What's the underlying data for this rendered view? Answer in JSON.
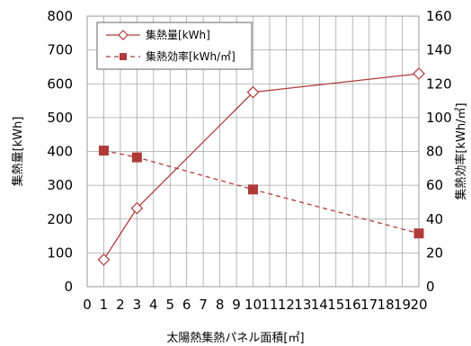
{
  "chart_data": {
    "type": "line",
    "xlabel": "太陽熱集熱パネル面積[㎡]",
    "ylabel_left": "集熱量[kWh]",
    "ylabel_right": "集熱効率[kWh/㎡]",
    "x_ticks": [
      0,
      1,
      2,
      3,
      4,
      5,
      6,
      7,
      8,
      9,
      10,
      11,
      12,
      13,
      14,
      15,
      16,
      17,
      18,
      19,
      20
    ],
    "xlim": [
      0,
      20
    ],
    "ylim_left": [
      0,
      800
    ],
    "ylim_right": [
      0,
      160
    ],
    "yticks_left": [
      0,
      100,
      200,
      300,
      400,
      500,
      600,
      700,
      800
    ],
    "yticks_right": [
      0,
      20,
      40,
      60,
      80,
      100,
      120,
      140,
      160
    ],
    "grid": "vertical and horizontal",
    "legend_position": "top-left",
    "series": [
      {
        "name": "集熱量[kWh]",
        "axis": "left",
        "style": "solid",
        "marker": "diamond-open",
        "color": "#b03a3a",
        "x": [
          1,
          3,
          10,
          20
        ],
        "values": [
          80,
          232,
          575,
          630
        ]
      },
      {
        "name": "集熱効率[kWh/㎡]",
        "axis": "right",
        "style": "dashed",
        "marker": "square-filled",
        "color": "#b03a3a",
        "x": [
          1,
          3,
          10,
          20
        ],
        "values": [
          80.5,
          76.5,
          57.5,
          31.5
        ]
      }
    ]
  }
}
